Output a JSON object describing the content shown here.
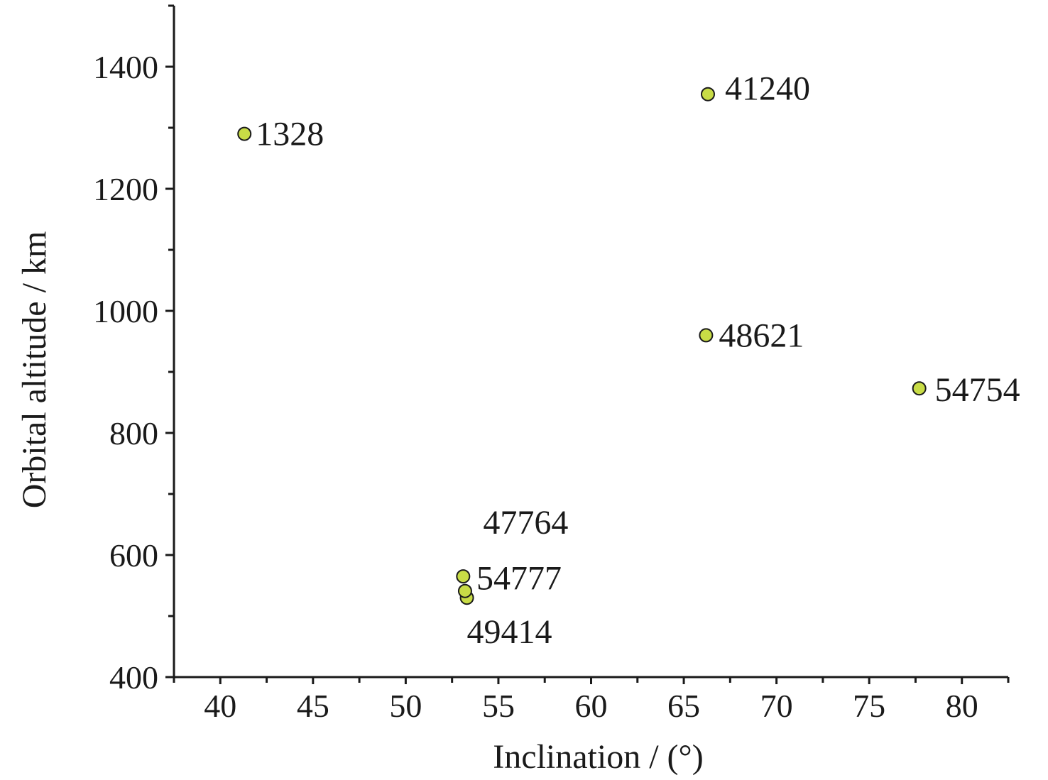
{
  "chart_data": {
    "type": "scatter",
    "title": "",
    "xlabel": "Inclination / (°)",
    "ylabel": "Orbital altitude / km",
    "xlim": [
      37.5,
      82.5
    ],
    "ylim": [
      400,
      1500
    ],
    "x_ticks": [
      40,
      45,
      50,
      55,
      60,
      65,
      70,
      75,
      80
    ],
    "y_ticks": [
      400,
      600,
      800,
      1000,
      1200,
      1400
    ],
    "grid": false,
    "marker_color": "#c8dc46",
    "points": [
      {
        "label": "1328",
        "x": 41.3,
        "y": 1290
      },
      {
        "label": "41240",
        "x": 66.3,
        "y": 1355
      },
      {
        "label": "48621",
        "x": 66.2,
        "y": 960
      },
      {
        "label": "54754",
        "x": 77.7,
        "y": 873
      },
      {
        "label": "47764",
        "x": 53.1,
        "y": 565
      },
      {
        "label": "54777",
        "x": 53.2,
        "y": 541
      },
      {
        "label": "49414",
        "x": 53.3,
        "y": 530
      }
    ]
  }
}
